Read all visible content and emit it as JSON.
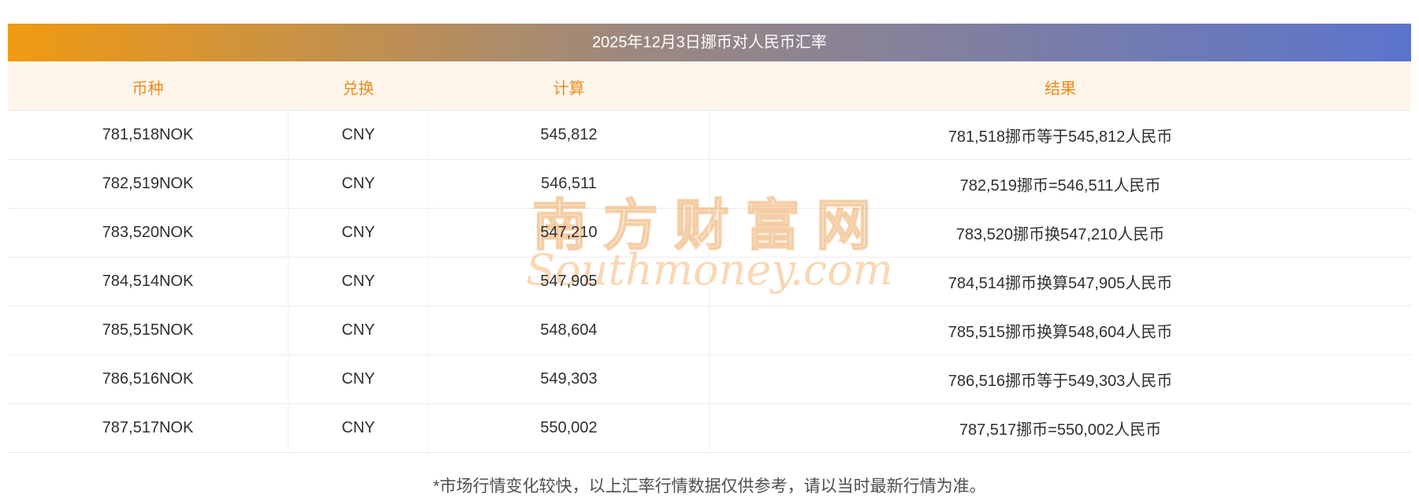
{
  "title": "2025年12月3日挪币对人民币汇率",
  "table": {
    "headers": [
      "币种",
      "兑换",
      "计算",
      "结果"
    ],
    "rows": [
      [
        "781,518NOK",
        "CNY",
        "545,812",
        "781,518挪币等于545,812人民币"
      ],
      [
        "782,519NOK",
        "CNY",
        "546,511",
        "782,519挪币=546,511人民币"
      ],
      [
        "783,520NOK",
        "CNY",
        "547,210",
        "783,520挪币换547,210人民币"
      ],
      [
        "784,514NOK",
        "CNY",
        "547,905",
        "784,514挪币换算547,905人民币"
      ],
      [
        "785,515NOK",
        "CNY",
        "548,604",
        "785,515挪币换算548,604人民币"
      ],
      [
        "786,516NOK",
        "CNY",
        "549,303",
        "786,516挪币等于549,303人民币"
      ],
      [
        "787,517NOK",
        "CNY",
        "550,002",
        "787,517挪币=550,002人民币"
      ]
    ]
  },
  "watermark": {
    "cn": "南方财富网",
    "en": "Southmoney.com"
  },
  "footnote": "*市场行情变化较快，以上汇率行情数据仅供参考，请以当时最新行情为准。",
  "colors": {
    "accent": "#f0891c",
    "header-bg": "#fdf5ea",
    "gradient-left": "#f09a12",
    "gradient-mid": "#9b8880",
    "gradient-right": "#5b74cc",
    "border": "#ebebeb",
    "text": "#2f2f2f",
    "footnote-text": "#4f4f4f"
  }
}
